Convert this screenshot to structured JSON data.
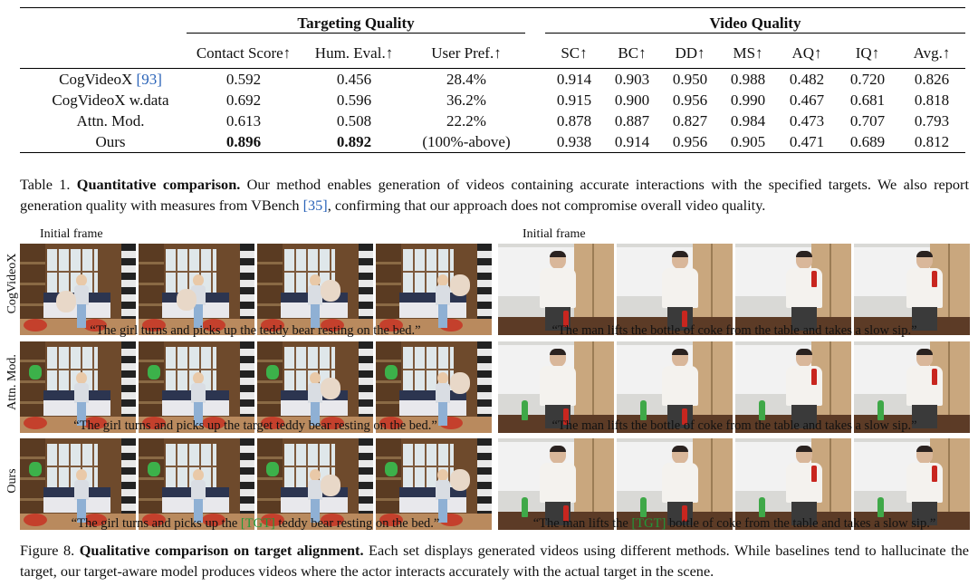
{
  "table": {
    "group_headers": [
      "Targeting Quality",
      "Video Quality"
    ],
    "targeting_columns": [
      "Contact Score↑",
      "Hum. Eval.↑",
      "User Pref.↑"
    ],
    "video_columns": [
      "SC↑",
      "BC↑",
      "DD↑",
      "MS↑",
      "AQ↑",
      "IQ↑",
      "Avg.↑"
    ],
    "rows": [
      {
        "method": "CogVideoX ",
        "cite": "[93]",
        "contact": "0.592",
        "hum": "0.456",
        "pref": "28.4%",
        "sc": "0.914",
        "bc": "0.903",
        "dd": "0.950",
        "ms": "0.988",
        "aq": "0.482",
        "iq": "0.720",
        "avg": "0.826"
      },
      {
        "method": "CogVideoX w.data",
        "cite": "",
        "contact": "0.692",
        "hum": "0.596",
        "pref": "36.2%",
        "sc": "0.915",
        "bc": "0.900",
        "dd": "0.956",
        "ms": "0.990",
        "aq": "0.467",
        "iq": "0.681",
        "avg": "0.818"
      },
      {
        "method": "Attn. Mod.",
        "cite": "",
        "contact": "0.613",
        "hum": "0.508",
        "pref": "22.2%",
        "sc": "0.878",
        "bc": "0.887",
        "dd": "0.827",
        "ms": "0.984",
        "aq": "0.473",
        "iq": "0.707",
        "avg": "0.793"
      },
      {
        "method": "Ours",
        "cite": "",
        "contact": "0.896",
        "hum": "0.892",
        "pref": "(100%-above)",
        "sc": "0.938",
        "bc": "0.914",
        "dd": "0.956",
        "ms": "0.905",
        "aq": "0.471",
        "iq": "0.689",
        "avg": "0.812"
      }
    ]
  },
  "table_caption": {
    "label": "Table 1. ",
    "bold": "Quantitative comparison.",
    "text1": " Our method enables generation of videos containing accurate interactions with the specified targets. We also report generation quality with measures from VBench ",
    "cite": "[35]",
    "text2": ", confirming that our approach does not compromise overall video quality."
  },
  "figure": {
    "initial_frame_left": "Initial frame",
    "initial_frame_right": "Initial frame",
    "row_labels": [
      "CogVideoX",
      "Attn. Mod.",
      "Ours"
    ],
    "prompts_left": [
      "“The girl turns and picks up the teddy bear resting on the bed.”",
      "“The girl turns and picks up the target teddy bear resting on the bed.”"
    ],
    "prompts_right": [
      "“The man lifts the bottle of coke from the table and takes a slow sip.”",
      "“The man lifts the bottle of coke from the table and takes a slow sip.”"
    ],
    "prompt_ours_left": {
      "pre": "“The girl turns and picks up the ",
      "tgt": "[TGT]",
      "post": " teddy bear resting on the bed.”"
    },
    "prompt_ours_right": {
      "pre": "“The man lifts the ",
      "tgt": "[TGT]",
      "post": " bottle of coke from the table and takes a slow sip.”"
    }
  },
  "figure_caption": {
    "label": "Figure 8. ",
    "bold": "Qualitative comparison on target alignment.",
    "text": " Each set displays generated videos using different methods. While baselines tend to hallucinate the target, our target-aware model produces videos where the actor interacts accurately with the actual target in the scene."
  },
  "colors": {
    "cite": "#2a63b8",
    "tgt_token": "#1f9a3a"
  }
}
